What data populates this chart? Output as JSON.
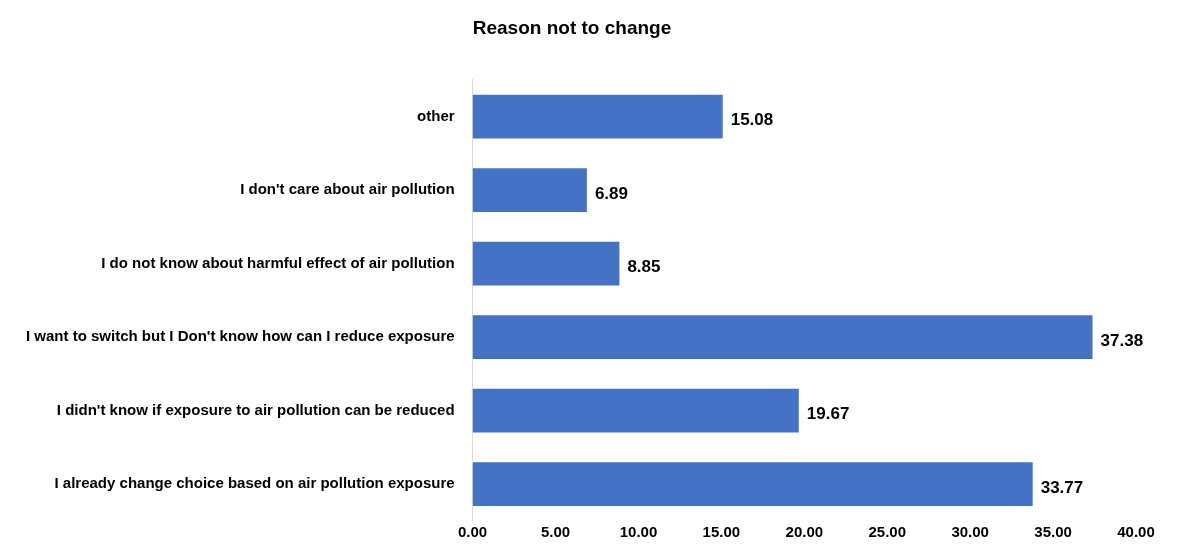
{
  "chart_data": {
    "type": "bar",
    "orientation": "horizontal",
    "title": "Reason not to change",
    "categories": [
      "other",
      "I don't care about air pollution",
      "I do not know about harmful effect of air pollution",
      "I want to switch but I Don't know how can I reduce exposure",
      "I didn't know if exposure to air pollution can be reduced",
      "I already change choice based on air pollution exposure"
    ],
    "values": [
      15.08,
      6.89,
      8.85,
      37.38,
      19.67,
      33.77
    ],
    "color": "#4472c4",
    "xlim": [
      0,
      40
    ],
    "xticks": [
      {
        "value": 0,
        "label": "0.00"
      },
      {
        "value": 5,
        "label": "5.00"
      },
      {
        "value": 10,
        "label": "10.00"
      },
      {
        "value": 15,
        "label": "15.00"
      },
      {
        "value": 20,
        "label": "20.00"
      },
      {
        "value": 25,
        "label": "25.00"
      },
      {
        "value": 30,
        "label": "30.00"
      },
      {
        "value": 35,
        "label": "35.00"
      },
      {
        "value": 40,
        "label": "40.00"
      }
    ],
    "data_labels": true,
    "grid": false,
    "legend": false
  }
}
